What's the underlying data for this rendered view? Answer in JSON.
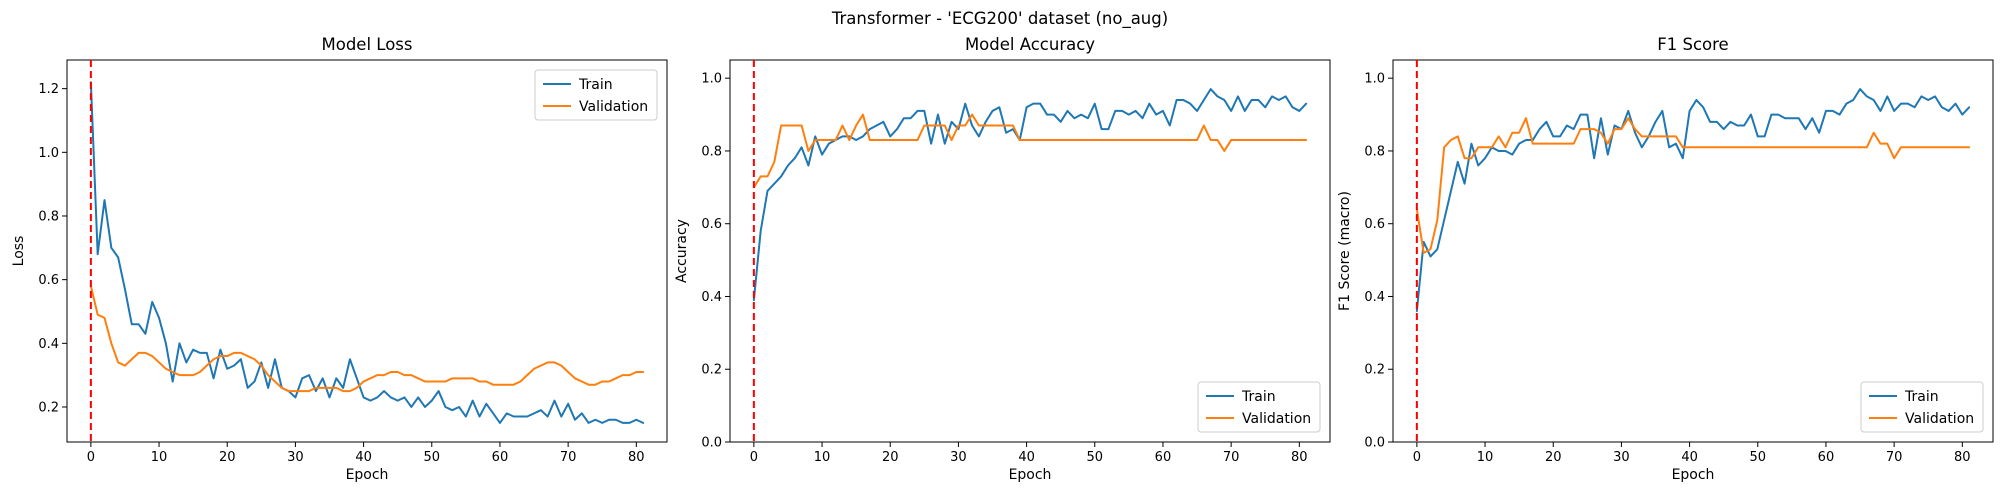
{
  "figure": {
    "suptitle": "Transformer - 'ECG200' dataset (no_aug)"
  },
  "colors": {
    "train": "#1f77b4",
    "validation": "#ff7f0e",
    "marker_line": "#ff0000"
  },
  "chart_data": [
    {
      "type": "line",
      "title": "Model Loss",
      "xlabel": "Epoch",
      "ylabel": "Loss",
      "xlim": [
        -3.5,
        84.5
      ],
      "ylim": [
        0.09,
        1.29
      ],
      "xticks": [
        0,
        10,
        20,
        30,
        40,
        50,
        60,
        70,
        80
      ],
      "yticks": [
        0.2,
        0.4,
        0.6,
        0.8,
        1.0,
        1.2
      ],
      "ytick_labels": [
        "0.2",
        "0.4",
        "0.6",
        "0.8",
        "1.0",
        "1.2"
      ],
      "vline_x": 0,
      "legend": "top-right",
      "series": [
        {
          "name": "Train",
          "values": [
            1.22,
            0.68,
            0.85,
            0.7,
            0.67,
            0.57,
            0.46,
            0.46,
            0.43,
            0.53,
            0.48,
            0.4,
            0.28,
            0.4,
            0.34,
            0.38,
            0.37,
            0.37,
            0.29,
            0.38,
            0.32,
            0.33,
            0.35,
            0.26,
            0.28,
            0.34,
            0.26,
            0.35,
            0.26,
            0.25,
            0.23,
            0.29,
            0.3,
            0.25,
            0.29,
            0.23,
            0.29,
            0.26,
            0.35,
            0.29,
            0.23,
            0.22,
            0.23,
            0.25,
            0.23,
            0.22,
            0.23,
            0.2,
            0.23,
            0.2,
            0.22,
            0.25,
            0.2,
            0.19,
            0.2,
            0.17,
            0.22,
            0.17,
            0.21,
            0.18,
            0.15,
            0.18,
            0.17,
            0.17,
            0.17,
            0.18,
            0.19,
            0.17,
            0.22,
            0.17,
            0.21,
            0.16,
            0.18,
            0.15,
            0.16,
            0.15,
            0.16,
            0.16,
            0.15,
            0.15,
            0.16,
            0.15
          ]
        },
        {
          "name": "Validation",
          "values": [
            0.58,
            0.49,
            0.48,
            0.4,
            0.34,
            0.33,
            0.35,
            0.37,
            0.37,
            0.36,
            0.34,
            0.32,
            0.31,
            0.3,
            0.3,
            0.3,
            0.31,
            0.33,
            0.35,
            0.36,
            0.36,
            0.37,
            0.37,
            0.36,
            0.35,
            0.33,
            0.3,
            0.28,
            0.26,
            0.25,
            0.25,
            0.25,
            0.25,
            0.26,
            0.26,
            0.26,
            0.26,
            0.25,
            0.25,
            0.26,
            0.28,
            0.29,
            0.3,
            0.3,
            0.31,
            0.31,
            0.3,
            0.3,
            0.29,
            0.28,
            0.28,
            0.28,
            0.28,
            0.29,
            0.29,
            0.29,
            0.29,
            0.28,
            0.28,
            0.27,
            0.27,
            0.27,
            0.27,
            0.28,
            0.3,
            0.32,
            0.33,
            0.34,
            0.34,
            0.33,
            0.31,
            0.29,
            0.28,
            0.27,
            0.27,
            0.28,
            0.28,
            0.29,
            0.3,
            0.3,
            0.31,
            0.31
          ]
        }
      ]
    },
    {
      "type": "line",
      "title": "Model Accuracy",
      "xlabel": "Epoch",
      "ylabel": "Accuracy",
      "xlim": [
        -3.5,
        84.5
      ],
      "ylim": [
        0.0,
        1.05
      ],
      "xticks": [
        0,
        10,
        20,
        30,
        40,
        50,
        60,
        70,
        80
      ],
      "yticks": [
        0.0,
        0.2,
        0.4,
        0.6,
        0.8,
        1.0
      ],
      "ytick_labels": [
        "0.0",
        "0.2",
        "0.4",
        "0.6",
        "0.8",
        "1.0"
      ],
      "vline_x": 0,
      "legend": "bottom-right",
      "series": [
        {
          "name": "Train",
          "values": [
            0.39,
            0.58,
            0.69,
            0.71,
            0.73,
            0.76,
            0.78,
            0.81,
            0.76,
            0.84,
            0.79,
            0.82,
            0.83,
            0.84,
            0.84,
            0.83,
            0.84,
            0.86,
            0.87,
            0.88,
            0.84,
            0.86,
            0.89,
            0.89,
            0.91,
            0.91,
            0.82,
            0.9,
            0.82,
            0.88,
            0.86,
            0.93,
            0.87,
            0.84,
            0.88,
            0.91,
            0.92,
            0.85,
            0.86,
            0.83,
            0.92,
            0.93,
            0.93,
            0.9,
            0.9,
            0.88,
            0.91,
            0.89,
            0.9,
            0.89,
            0.93,
            0.86,
            0.86,
            0.91,
            0.91,
            0.9,
            0.91,
            0.89,
            0.93,
            0.9,
            0.91,
            0.87,
            0.94,
            0.94,
            0.93,
            0.91,
            0.94,
            0.97,
            0.95,
            0.94,
            0.91,
            0.95,
            0.91,
            0.94,
            0.94,
            0.92,
            0.95,
            0.94,
            0.95,
            0.92,
            0.91,
            0.93
          ]
        },
        {
          "name": "Validation",
          "values": [
            0.7,
            0.73,
            0.73,
            0.77,
            0.87,
            0.87,
            0.87,
            0.87,
            0.8,
            0.83,
            0.83,
            0.83,
            0.83,
            0.87,
            0.83,
            0.87,
            0.9,
            0.83,
            0.83,
            0.83,
            0.83,
            0.83,
            0.83,
            0.83,
            0.83,
            0.87,
            0.87,
            0.87,
            0.87,
            0.83,
            0.87,
            0.87,
            0.9,
            0.87,
            0.87,
            0.87,
            0.87,
            0.87,
            0.87,
            0.83,
            0.83,
            0.83,
            0.83,
            0.83,
            0.83,
            0.83,
            0.83,
            0.83,
            0.83,
            0.83,
            0.83,
            0.83,
            0.83,
            0.83,
            0.83,
            0.83,
            0.83,
            0.83,
            0.83,
            0.83,
            0.83,
            0.83,
            0.83,
            0.83,
            0.83,
            0.83,
            0.87,
            0.83,
            0.83,
            0.8,
            0.83,
            0.83,
            0.83,
            0.83,
            0.83,
            0.83,
            0.83,
            0.83,
            0.83,
            0.83,
            0.83,
            0.83
          ]
        }
      ]
    },
    {
      "type": "line",
      "title": "F1 Score",
      "xlabel": "Epoch",
      "ylabel": "F1 Score (macro)",
      "xlim": [
        -3.5,
        84.5
      ],
      "ylim": [
        0.0,
        1.05
      ],
      "xticks": [
        0,
        10,
        20,
        30,
        40,
        50,
        60,
        70,
        80
      ],
      "yticks": [
        0.0,
        0.2,
        0.4,
        0.6,
        0.8,
        1.0
      ],
      "ytick_labels": [
        "0.0",
        "0.2",
        "0.4",
        "0.6",
        "0.8",
        "1.0"
      ],
      "vline_x": 0,
      "legend": "bottom-right",
      "series": [
        {
          "name": "Train",
          "values": [
            0.36,
            0.55,
            0.51,
            0.53,
            0.61,
            0.69,
            0.77,
            0.71,
            0.82,
            0.76,
            0.78,
            0.81,
            0.8,
            0.8,
            0.79,
            0.82,
            0.83,
            0.83,
            0.86,
            0.88,
            0.84,
            0.84,
            0.87,
            0.86,
            0.9,
            0.9,
            0.78,
            0.89,
            0.79,
            0.87,
            0.86,
            0.91,
            0.85,
            0.81,
            0.84,
            0.88,
            0.91,
            0.81,
            0.82,
            0.78,
            0.91,
            0.94,
            0.92,
            0.88,
            0.88,
            0.86,
            0.88,
            0.87,
            0.87,
            0.9,
            0.84,
            0.84,
            0.9,
            0.9,
            0.89,
            0.89,
            0.89,
            0.86,
            0.89,
            0.85,
            0.91,
            0.91,
            0.9,
            0.93,
            0.94,
            0.97,
            0.95,
            0.94,
            0.91,
            0.95,
            0.91,
            0.93,
            0.93,
            0.92,
            0.95,
            0.94,
            0.95,
            0.92,
            0.91,
            0.93,
            0.9,
            0.92
          ]
        },
        {
          "name": "Validation",
          "values": [
            0.64,
            0.52,
            0.53,
            0.61,
            0.81,
            0.83,
            0.84,
            0.78,
            0.78,
            0.81,
            0.81,
            0.81,
            0.84,
            0.81,
            0.85,
            0.85,
            0.89,
            0.82,
            0.82,
            0.82,
            0.82,
            0.82,
            0.82,
            0.82,
            0.86,
            0.86,
            0.86,
            0.85,
            0.82,
            0.86,
            0.86,
            0.89,
            0.86,
            0.84,
            0.84,
            0.84,
            0.84,
            0.84,
            0.84,
            0.81,
            0.81,
            0.81,
            0.81,
            0.81,
            0.81,
            0.81,
            0.81,
            0.81,
            0.81,
            0.81,
            0.81,
            0.81,
            0.81,
            0.81,
            0.81,
            0.81,
            0.81,
            0.81,
            0.81,
            0.81,
            0.81,
            0.81,
            0.81,
            0.81,
            0.81,
            0.81,
            0.81,
            0.85,
            0.82,
            0.82,
            0.78,
            0.81,
            0.81,
            0.81,
            0.81,
            0.81,
            0.81,
            0.81,
            0.81,
            0.81,
            0.81,
            0.81
          ]
        }
      ]
    }
  ]
}
